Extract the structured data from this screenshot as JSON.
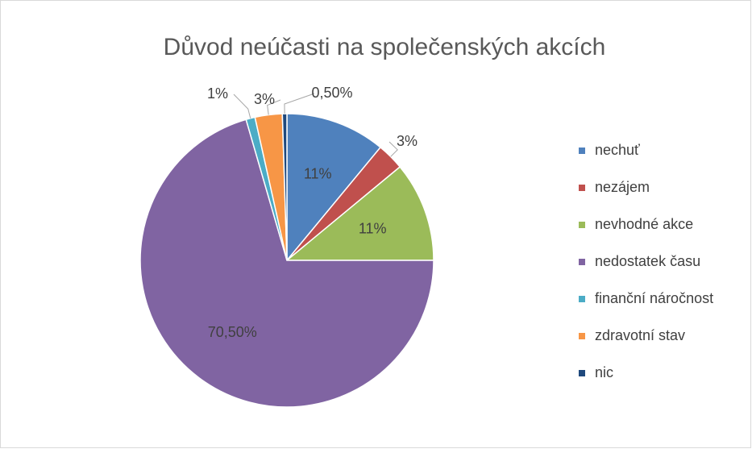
{
  "chart_data": {
    "type": "pie",
    "title": "Důvod neúčasti na společenských akcích",
    "categories": [
      "nechuť",
      "nezájem",
      "nevhodné akce",
      "nedostatek času",
      "finanční náročnost",
      "zdravotní stav",
      "nic"
    ],
    "values": [
      11,
      3,
      11,
      70.5,
      1,
      3,
      0.5
    ],
    "value_labels": [
      "11%",
      "3%",
      "11%",
      "70,50%",
      "1%",
      "3%",
      "0,50%"
    ],
    "colors": [
      "#4f81bd",
      "#c0504d",
      "#9bbb59",
      "#8064a2",
      "#4bacc6",
      "#f79646",
      "#1f497d"
    ],
    "legend": "right"
  }
}
